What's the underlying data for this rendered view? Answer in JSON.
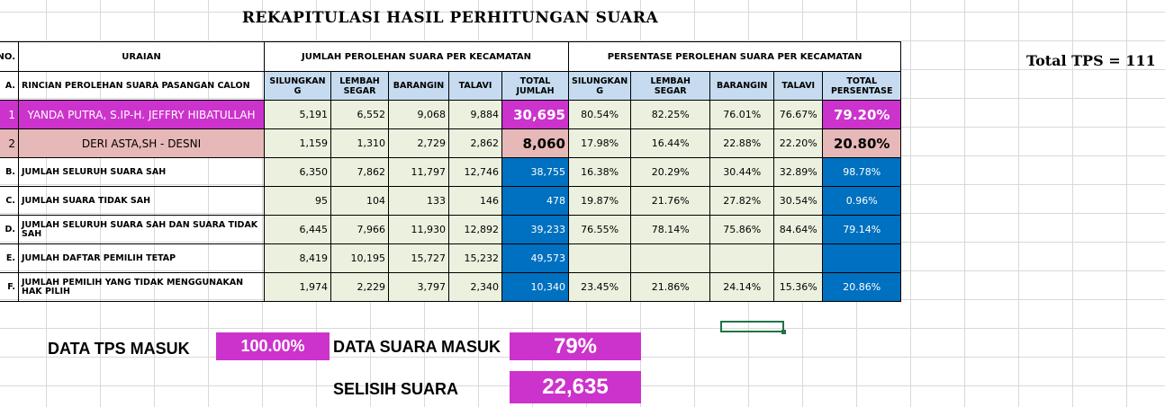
{
  "title": "REKAPITULASI HASIL PERHITUNGAN SUARA",
  "total_tps": "Total TPS = 111",
  "headers": {
    "no": "NO.",
    "uraian": "URAIAN",
    "jumlah_group": "JUMLAH PEROLEHAN SUARA PER KECAMATAN",
    "persen_group": "PERSENTASE PEROLEHAN SUARA PER KECAMATAN",
    "cols": [
      "SILUNGKAN G",
      "LEMBAH SEGAR",
      "BARANGIN",
      "TALAVI",
      "TOTAL JUMLAH"
    ],
    "pcols": [
      "SILUNGKAN G",
      "LEMBAH SEGAR",
      "BARANGIN",
      "TALAVI",
      "TOTAL PERSENTASE"
    ]
  },
  "rows": [
    {
      "no": "A.",
      "label": "RINCIAN PEROLEHAN SUARA PASANGAN CALON",
      "v": [
        "SILUNGKAN G",
        "LEMBAH SEGAR",
        "BARANGIN",
        "TALAVI",
        "TOTAL JUMLAH"
      ],
      "p": [
        "SILUNGKAN G",
        "LEMBAH SEGAR",
        "BARANGIN",
        "TALAVI",
        "TOTAL PERSENTASE"
      ]
    },
    {
      "no": "1",
      "label": "YANDA PUTRA, S.IP-H. JEFFRY HIBATULLAH",
      "v": [
        "5,191",
        "6,552",
        "9,068",
        "9,884",
        "30,695"
      ],
      "p": [
        "80.54%",
        "82.25%",
        "76.01%",
        "76.67%",
        "79.20%"
      ]
    },
    {
      "no": "2",
      "label": "DERI ASTA,SH - DESNI",
      "v": [
        "1,159",
        "1,310",
        "2,729",
        "2,862",
        "8,060"
      ],
      "p": [
        "17.98%",
        "16.44%",
        "22.88%",
        "22.20%",
        "20.80%"
      ]
    },
    {
      "no": "B.",
      "label": "JUMLAH SELURUH SUARA SAH",
      "v": [
        "6,350",
        "7,862",
        "11,797",
        "12,746",
        "38,755"
      ],
      "p": [
        "16.38%",
        "20.29%",
        "30.44%",
        "32.89%",
        "98.78%"
      ]
    },
    {
      "no": "C.",
      "label": "JUMLAH SUARA TIDAK SAH",
      "v": [
        "95",
        "104",
        "133",
        "146",
        "478"
      ],
      "p": [
        "19.87%",
        "21.76%",
        "27.82%",
        "30.54%",
        "0.96%"
      ]
    },
    {
      "no": "D.",
      "label": "JUMLAH SELURUH SUARA SAH DAN SUARA TIDAK SAH",
      "v": [
        "6,445",
        "7,966",
        "11,930",
        "12,892",
        "39,233"
      ],
      "p": [
        "76.55%",
        "78.14%",
        "75.86%",
        "84.64%",
        "79.14%"
      ]
    },
    {
      "no": "E.",
      "label": "JUMLAH DAFTAR PEMILIH TETAP",
      "v": [
        "8,419",
        "10,195",
        "15,727",
        "15,232",
        "49,573"
      ],
      "p": [
        "",
        "",
        "",
        "",
        ""
      ]
    },
    {
      "no": "F.",
      "label": "JUMLAH PEMILIH YANG TIDAK MENGGUNAKAN HAK PILIH",
      "v": [
        "1,974",
        "2,229",
        "3,797",
        "2,340",
        "10,340"
      ],
      "p": [
        "23.45%",
        "21.86%",
        "24.14%",
        "15.36%",
        "20.86%"
      ]
    }
  ],
  "summary": {
    "tps_label": "DATA TPS MASUK",
    "tps_value": "100.00%",
    "suara_label": "DATA SUARA MASUK",
    "suara_value": "79%",
    "selisih_label": "SELISIH SUARA",
    "selisih_value": "22,635"
  },
  "colors": {
    "magenta": "#cc33cc",
    "pink": "#e6b8b7",
    "blue": "#0070c0",
    "light_green": "#ebf1de",
    "header_blue": "#c6dbef"
  }
}
